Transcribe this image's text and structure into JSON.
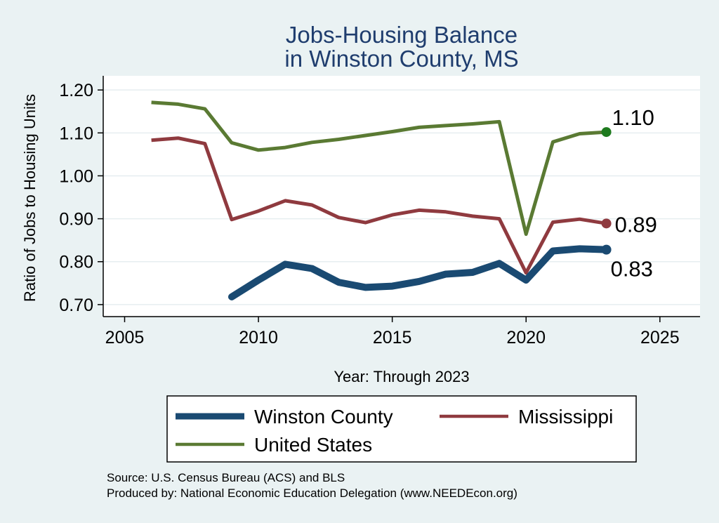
{
  "chart_data": {
    "type": "line",
    "title": [
      "Jobs-Housing Balance",
      "in Winston County, MS"
    ],
    "xlabel": "Year: Through 2023",
    "ylabel": "Ratio of Jobs to Housing Units",
    "xlim": [
      2004.2,
      2026.5
    ],
    "ylim": [
      0.672,
      1.233
    ],
    "x_ticks": [
      2005,
      2010,
      2015,
      2020,
      2025
    ],
    "x_tick_labels": [
      "2005",
      "2010",
      "2015",
      "2020",
      "2025"
    ],
    "y_ticks": [
      0.7,
      0.8,
      0.9,
      1.0,
      1.1,
      1.2
    ],
    "y_tick_labels": [
      "0.70",
      "0.80",
      "0.90",
      "1.00",
      "1.10",
      "1.20"
    ],
    "grid": true,
    "legend_position": "bottom",
    "series": [
      {
        "name": "Winston County",
        "color": "#1a4a72",
        "end_label": "0.83",
        "x": [
          2009,
          2010,
          2011,
          2012,
          2013,
          2014,
          2015,
          2016,
          2017,
          2018,
          2019,
          2020,
          2021,
          2022,
          2023
        ],
        "values": [
          0.718,
          0.757,
          0.794,
          0.784,
          0.752,
          0.74,
          0.743,
          0.754,
          0.771,
          0.775,
          0.796,
          0.757,
          0.825,
          0.83,
          0.828
        ]
      },
      {
        "name": "Mississippi",
        "color": "#8f3a3f",
        "end_label": "0.89",
        "x": [
          2006,
          2007,
          2008,
          2009,
          2010,
          2011,
          2012,
          2013,
          2014,
          2015,
          2016,
          2017,
          2018,
          2019,
          2020,
          2021,
          2022,
          2023
        ],
        "values": [
          1.083,
          1.088,
          1.075,
          0.898,
          0.918,
          0.942,
          0.932,
          0.903,
          0.891,
          0.909,
          0.92,
          0.916,
          0.906,
          0.9,
          0.774,
          0.892,
          0.899,
          0.889
        ]
      },
      {
        "name": "United States",
        "color": "#5a7a33",
        "end_label": "1.10",
        "x": [
          2006,
          2007,
          2008,
          2009,
          2010,
          2011,
          2012,
          2013,
          2014,
          2015,
          2016,
          2017,
          2018,
          2019,
          2020,
          2021,
          2022,
          2023
        ],
        "values": [
          1.171,
          1.167,
          1.156,
          1.077,
          1.06,
          1.066,
          1.078,
          1.085,
          1.094,
          1.103,
          1.113,
          1.117,
          1.121,
          1.126,
          0.864,
          1.079,
          1.098,
          1.102
        ]
      }
    ],
    "source_note": "Source: U.S. Census Bureau (ACS) and BLS",
    "produced_note": "Produced by: National Economic Education Delegation (www.NEEDEcon.org)"
  },
  "colors": {
    "background": "#eaf2f3",
    "plot_background": "#ffffff",
    "title": "#1f3d6e",
    "end_marker_us": "#1e7a1e"
  }
}
